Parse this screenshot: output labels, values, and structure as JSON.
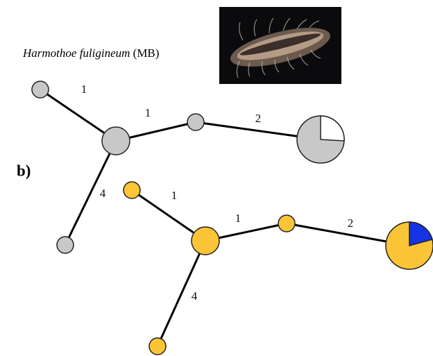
{
  "caption": {
    "species": "Harmothoe fuligineum",
    "code": "(MB)"
  },
  "panel_label": "b)",
  "networks": [
    {
      "edge_labels": [
        "1",
        "1",
        "2",
        "4"
      ]
    },
    {
      "edge_labels": [
        "1",
        "1",
        "2",
        "4"
      ]
    }
  ]
}
